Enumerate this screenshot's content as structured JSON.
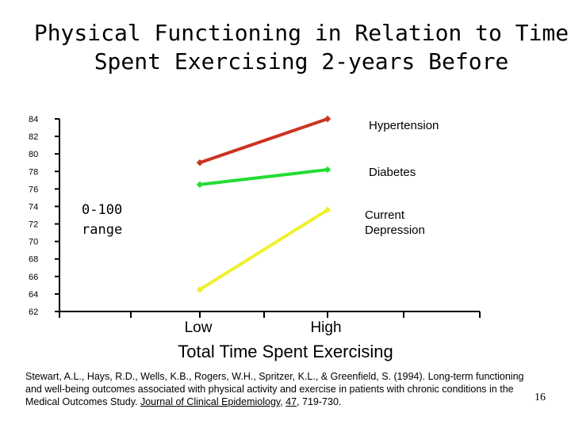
{
  "slide": {
    "title_line1": "Physical Functioning in Relation to Time",
    "title_line2": "Spent Exercising 2-years Before",
    "page_number": "16"
  },
  "chart_data": {
    "type": "line",
    "title": "Physical Functioning in Relation to Time Spent Exercising 2-years Before",
    "xlabel": "Total Time Spent Exercising",
    "ylabel": "",
    "categories": [
      "Low",
      "High"
    ],
    "ylim": [
      62,
      84
    ],
    "yticks": [
      84,
      82,
      80,
      78,
      76,
      74,
      72,
      70,
      68,
      66,
      64,
      62
    ],
    "grid": false,
    "annotation": "0-100\nrange",
    "series": [
      {
        "name": "Hypertension",
        "label_lines": [
          "Hypertension"
        ],
        "values": [
          79,
          84
        ],
        "color": "#cc3322"
      },
      {
        "name": "Diabetes",
        "label_lines": [
          "Diabetes"
        ],
        "values": [
          76.5,
          78.2
        ],
        "color": "#22dd33"
      },
      {
        "name": "Current Depression",
        "label_lines": [
          "Current",
          "Depression"
        ],
        "values": [
          64.5,
          73.6
        ],
        "color": "#f0f030"
      }
    ]
  },
  "citation": {
    "text_before": "Stewart, A.L., Hays, R.D., Wells, K.B., Rogers, W.H., Spritzer, K.L., & Greenfield, S. (1994). Long-term functioning and well-being outcomes associated with physical activity and exercise in patients with chronic conditions in the Medical Outcomes Study.  ",
    "journal": "Journal of Clinical Epidemiology",
    "sep": ", ",
    "volume": "47",
    "pages": ", 719-730."
  }
}
